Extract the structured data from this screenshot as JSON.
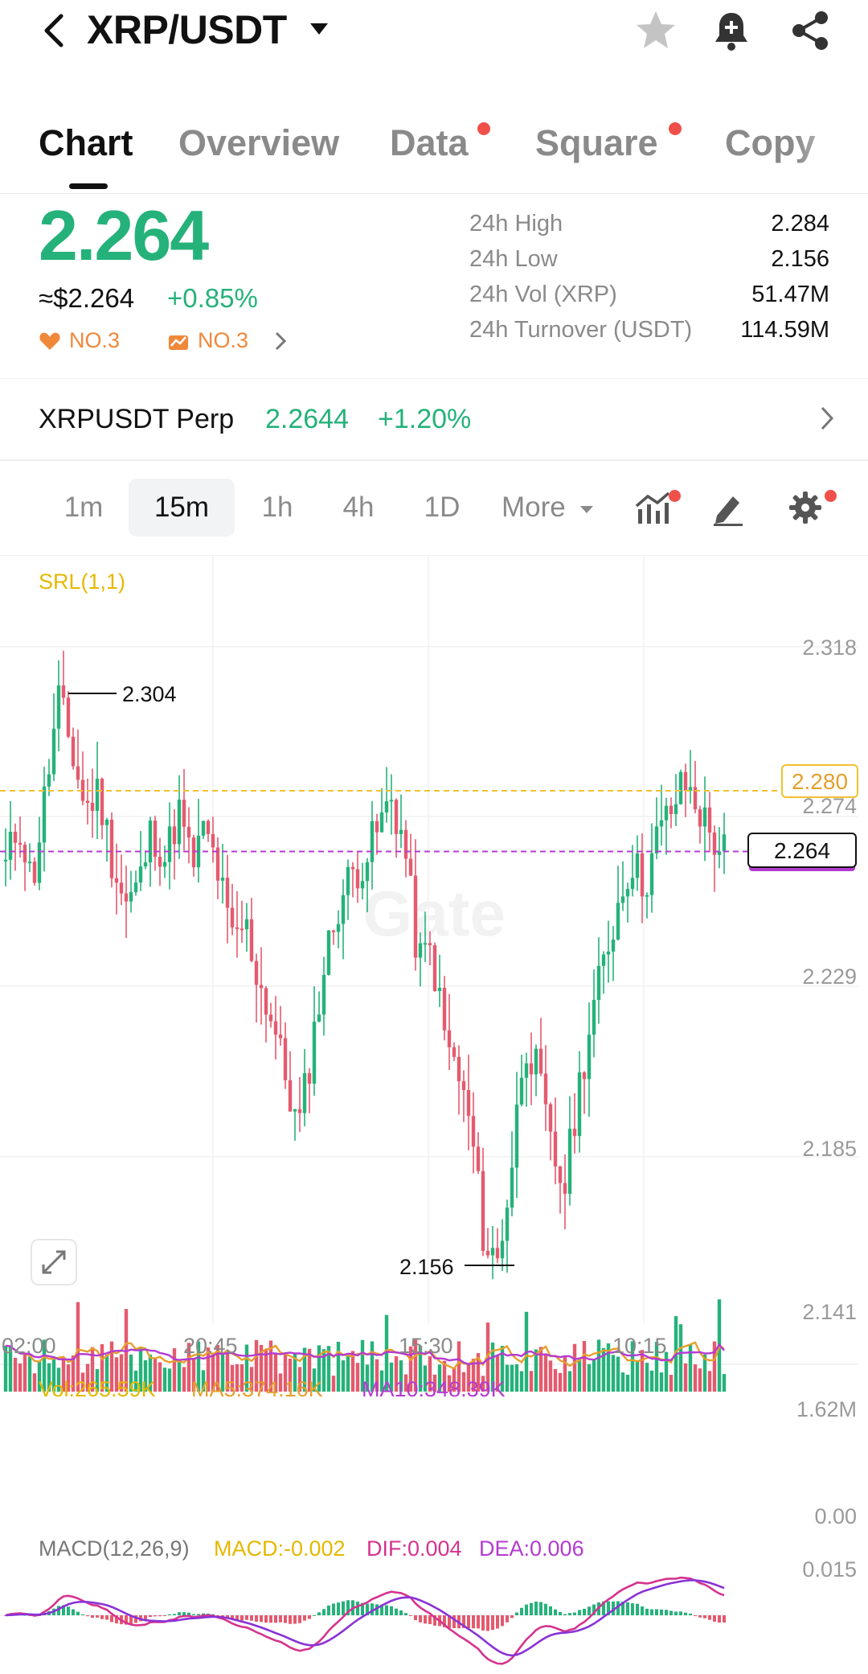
{
  "header": {
    "pair": "XRP/USDT",
    "icons": [
      "back-icon",
      "caret-down-icon",
      "star-icon",
      "bell-plus-icon",
      "share-icon"
    ]
  },
  "tabs": [
    {
      "label": "Chart",
      "active": true,
      "dot": false
    },
    {
      "label": "Overview",
      "active": false,
      "dot": false
    },
    {
      "label": "Data",
      "active": false,
      "dot": true
    },
    {
      "label": "Square",
      "active": false,
      "dot": true
    },
    {
      "label": "Copy",
      "active": false,
      "dot": false
    }
  ],
  "ticker": {
    "price": "2.264",
    "usd_price": "≈$2.264",
    "change": "+0.85%",
    "rank_1": "NO.3",
    "rank_2": "NO.3",
    "stats": [
      {
        "label": "24h High",
        "value": "2.284"
      },
      {
        "label": "24h Low",
        "value": "2.156"
      },
      {
        "label": "24h Vol (XRP)",
        "value": "51.47M"
      },
      {
        "label": "24h Turnover (USDT)",
        "value": "114.59M"
      }
    ]
  },
  "perp": {
    "name": "XRPUSDT Perp",
    "price": "2.2644",
    "change": "+1.20%"
  },
  "intervals": {
    "items": [
      "1m",
      "15m",
      "1h",
      "4h",
      "1D"
    ],
    "active": "15m",
    "more_label": "More"
  },
  "main_chart": {
    "indicator": "SRL(1,1)",
    "y_ticks": [
      "2.318",
      "2.274",
      "2.229",
      "2.185",
      "2.141"
    ],
    "x_ticks": [
      "02:00",
      "20:45",
      "15:30",
      "10:15"
    ],
    "high_marker": "2.304",
    "low_marker": "2.156",
    "srl_level": "2.280",
    "last_price": "2.264",
    "watermark": "Gate"
  },
  "volume": {
    "vol_label": "Vol:265.59K",
    "ma5_label": "MA5:374.16K",
    "ma10_label": "MA10:348.39K",
    "y_top": "1.62M",
    "y_bottom": "0.00"
  },
  "macd": {
    "title": "MACD(12,26,9)",
    "macd_label": "MACD:-0.002",
    "dif_label": "DIF:0.004",
    "dea_label": "DEA:0.006",
    "y_top": "0.015"
  },
  "colors": {
    "up": "#25b27a",
    "down": "#e45a6e",
    "accent_orange": "#f0883a",
    "srl": "#f2c12e",
    "ma5": "#e5a02d",
    "ma10": "#b43bd1",
    "dif": "#d5338f",
    "dea": "#8a32d6"
  },
  "chart_data": {
    "type": "candlestick",
    "y_range": [
      2.141,
      2.318
    ],
    "close_path": [
      2.26,
      2.272,
      2.255,
      2.28,
      2.304,
      2.29,
      2.275,
      2.28,
      2.262,
      2.25,
      2.255,
      2.27,
      2.262,
      2.275,
      2.26,
      2.27,
      2.258,
      2.24,
      2.245,
      2.23,
      2.22,
      2.205,
      2.19,
      2.212,
      2.235,
      2.25,
      2.258,
      2.262,
      2.27,
      2.278,
      2.265,
      2.235,
      2.238,
      2.215,
      2.205,
      2.19,
      2.16,
      2.156,
      2.18,
      2.215,
      2.205,
      2.185,
      2.175,
      2.2,
      2.22,
      2.235,
      2.25,
      2.262,
      2.255,
      2.268,
      2.275,
      2.282,
      2.276,
      2.268,
      2.264
    ]
  }
}
